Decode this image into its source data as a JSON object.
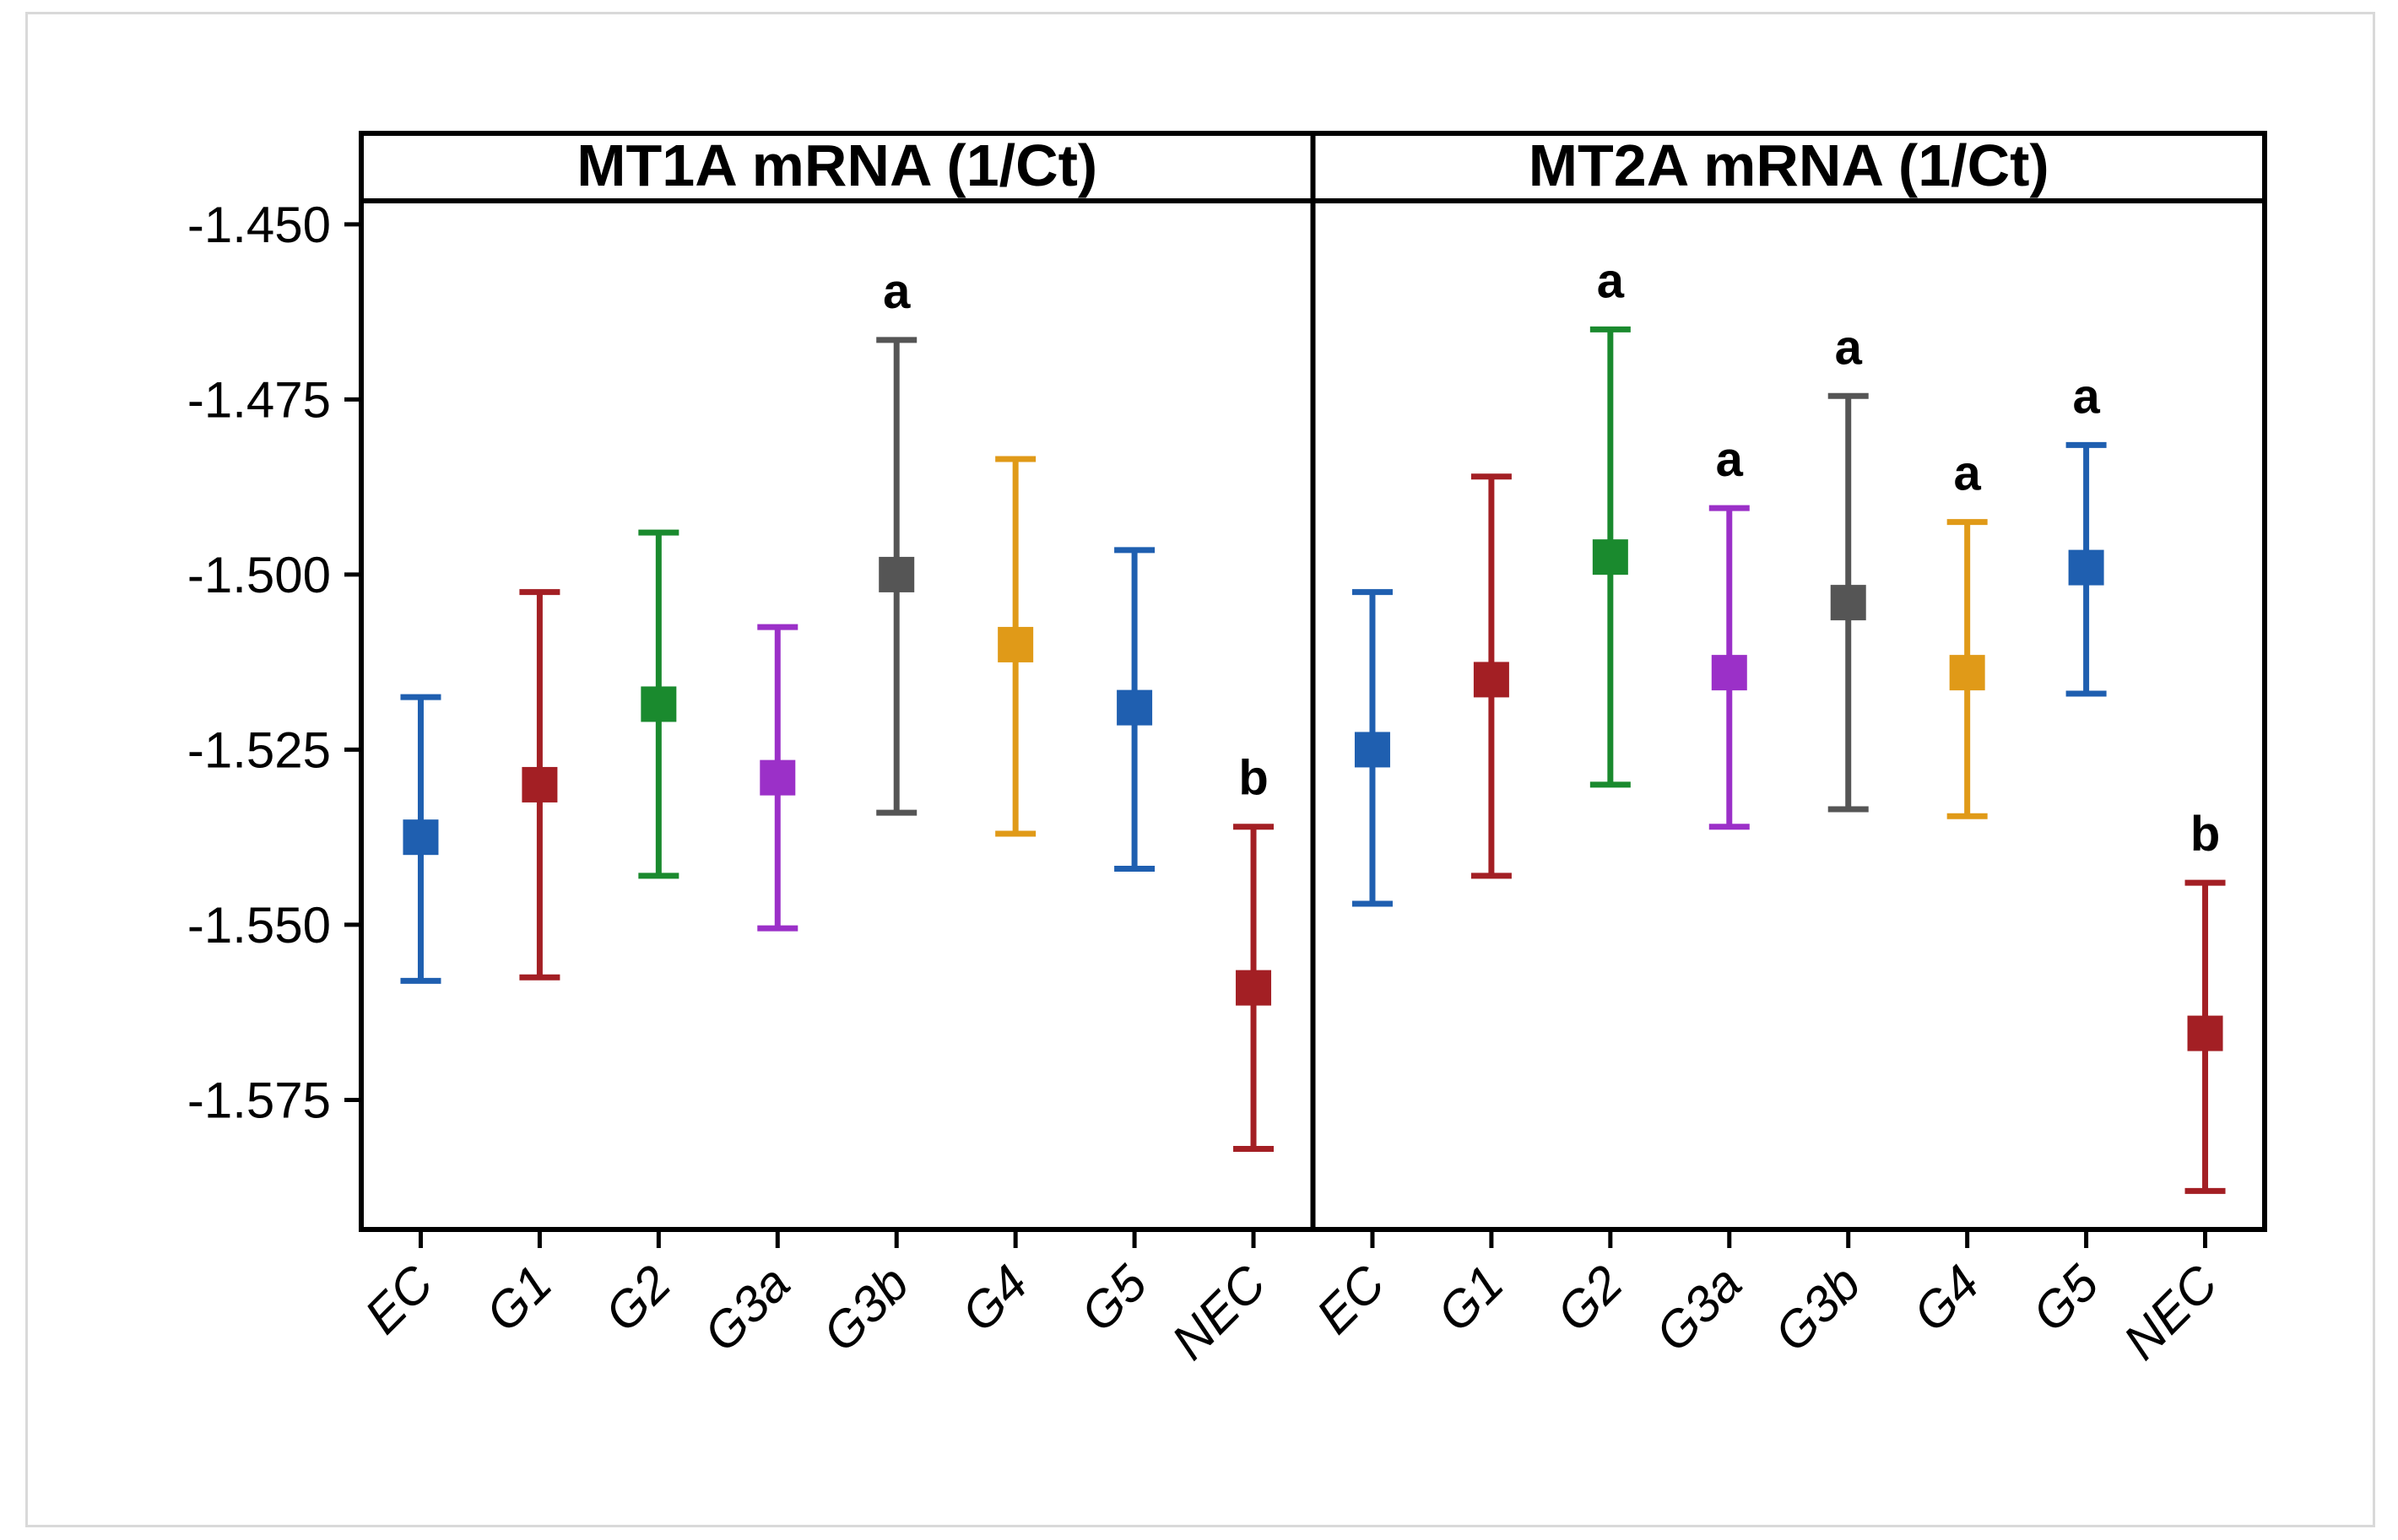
{
  "chart_data": {
    "type": "errorbar",
    "ylim": [
      -1.5935,
      -1.437
    ],
    "yticks": [
      -1.45,
      -1.475,
      -1.5,
      -1.525,
      -1.55,
      -1.575
    ],
    "ytick_labels": [
      "-1.450",
      "-1.475",
      "-1.500",
      "-1.525",
      "-1.550",
      "-1.575"
    ],
    "categories": [
      "EC",
      "G1",
      "G2",
      "G3a",
      "G3b",
      "G4",
      "G5",
      "NEC"
    ],
    "colors": [
      "#1f5fb0",
      "#a31f24",
      "#1a8a2e",
      "#9b30c8",
      "#555555",
      "#e09a18",
      "#1f5fb0",
      "#a31f24"
    ],
    "panels": [
      {
        "title": "MT1A mRNA (1/Ct)",
        "points": [
          {
            "category": "EC",
            "mean": -1.5375,
            "lower": -1.558,
            "upper": -1.5175,
            "label": ""
          },
          {
            "category": "G1",
            "mean": -1.53,
            "lower": -1.5575,
            "upper": -1.5025,
            "label": ""
          },
          {
            "category": "G2",
            "mean": -1.5185,
            "lower": -1.543,
            "upper": -1.494,
            "label": ""
          },
          {
            "category": "G3a",
            "mean": -1.529,
            "lower": -1.5505,
            "upper": -1.5075,
            "label": ""
          },
          {
            "category": "G3b",
            "mean": -1.5,
            "lower": -1.534,
            "upper": -1.4665,
            "label": "a"
          },
          {
            "category": "G4",
            "mean": -1.51,
            "lower": -1.537,
            "upper": -1.4835,
            "label": ""
          },
          {
            "category": "G5",
            "mean": -1.519,
            "lower": -1.542,
            "upper": -1.4965,
            "label": ""
          },
          {
            "category": "NEC",
            "mean": -1.559,
            "lower": -1.582,
            "upper": -1.536,
            "label": "b"
          }
        ]
      },
      {
        "title": "MT2A mRNA (1/Ct)",
        "points": [
          {
            "category": "EC",
            "mean": -1.525,
            "lower": -1.547,
            "upper": -1.5025,
            "label": ""
          },
          {
            "category": "G1",
            "mean": -1.515,
            "lower": -1.543,
            "upper": -1.486,
            "label": ""
          },
          {
            "category": "G2",
            "mean": -1.4975,
            "lower": -1.53,
            "upper": -1.465,
            "label": "a"
          },
          {
            "category": "G3a",
            "mean": -1.514,
            "lower": -1.536,
            "upper": -1.4905,
            "label": "a"
          },
          {
            "category": "G3b",
            "mean": -1.504,
            "lower": -1.5335,
            "upper": -1.4745,
            "label": "a"
          },
          {
            "category": "G4",
            "mean": -1.514,
            "lower": -1.5345,
            "upper": -1.4925,
            "label": "a"
          },
          {
            "category": "G5",
            "mean": -1.499,
            "lower": -1.517,
            "upper": -1.4815,
            "label": "a"
          },
          {
            "category": "NEC",
            "mean": -1.5655,
            "lower": -1.588,
            "upper": -1.544,
            "label": "b"
          }
        ]
      }
    ]
  }
}
